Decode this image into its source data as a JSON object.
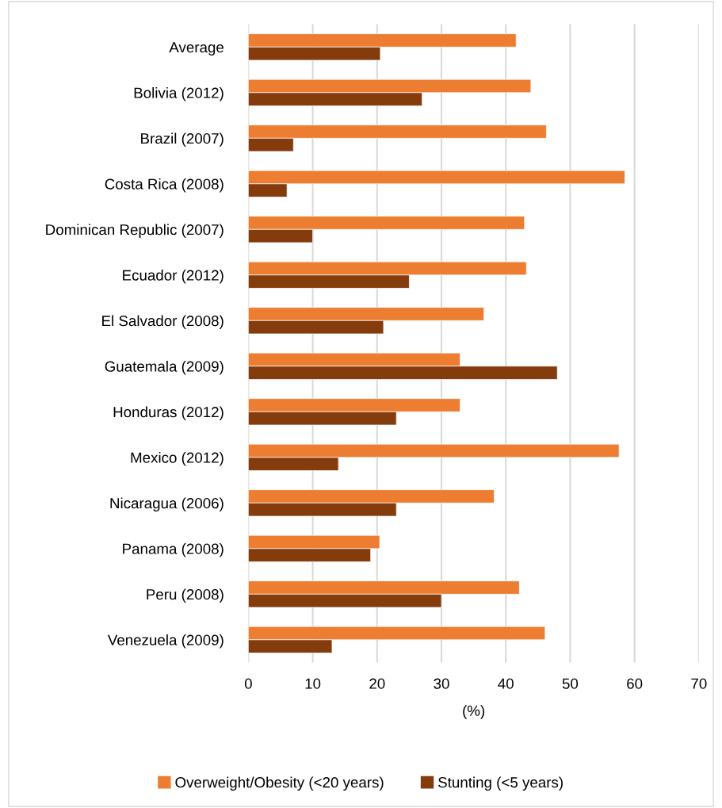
{
  "chart_data": {
    "type": "bar",
    "orientation": "horizontal",
    "xlabel": "(%)",
    "categories": [
      "Average",
      "Bolivia (2012)",
      "Brazil (2007)",
      "Costa Rica (2008)",
      "Dominican Republic (2007)",
      "Ecuador (2012)",
      "El Salvador (2008)",
      "Guatemala (2009)",
      "Honduras (2012)",
      "Mexico (2012)",
      "Nicaragua (2006)",
      "Panama (2008)",
      "Peru (2008)",
      "Venezuela (2009)"
    ],
    "series": [
      {
        "name": "Overweight/Obesity (<20 years)",
        "color": "#ed7d31",
        "values": [
          41.6,
          43.9,
          46.3,
          58.5,
          42.9,
          43.2,
          36.6,
          32.9,
          32.9,
          57.6,
          38.2,
          20.4,
          42.1,
          46.1
        ]
      },
      {
        "name": "Stunting (<5 years)",
        "color": "#843c0c",
        "values": [
          20.5,
          27,
          7,
          6,
          10,
          25,
          21,
          48,
          23,
          14,
          23,
          19,
          30,
          13
        ]
      }
    ],
    "xlim": [
      0,
      70
    ],
    "xticks": [
      0,
      10,
      20,
      30,
      40,
      50,
      60,
      70
    ],
    "grid": "x",
    "legend": "bottom"
  }
}
